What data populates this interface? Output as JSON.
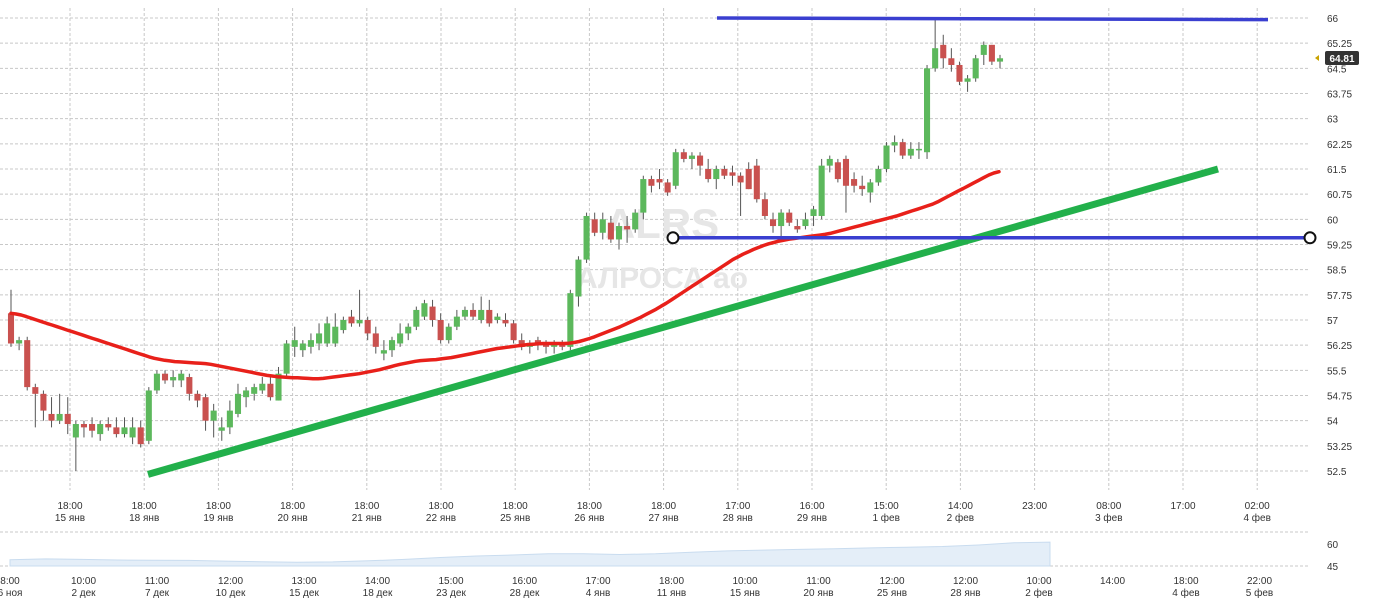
{
  "colors": {
    "up": "#5cb85c",
    "down": "#c9514f",
    "ma": "#e8201a",
    "trend": "#22b04b",
    "level": "#3a3fd0",
    "price_tag": "#333333",
    "grid": "#c8c8c8",
    "watermark": "#e6e6e6",
    "nav_fill": "#e4eef8"
  },
  "watermark": {
    "ticker": "ALRS",
    "name": "АЛРОСА ао"
  },
  "chart_data": {
    "type": "candlestick",
    "y_ticks": [
      "66",
      "65.25",
      "64.5",
      "63.75",
      "63",
      "62.25",
      "61.5",
      "60.75",
      "60",
      "59.25",
      "58.5",
      "57.75",
      "57",
      "56.25",
      "55.5",
      "54.75",
      "54",
      "53.25",
      "52.5"
    ],
    "y_range": [
      51.9,
      66.2
    ],
    "last_price": "64.81",
    "x_labels": [
      {
        "time": "18:00",
        "date": "15 янв"
      },
      {
        "time": "18:00",
        "date": "18 янв"
      },
      {
        "time": "18:00",
        "date": "19 янв"
      },
      {
        "time": "18:00",
        "date": "20 янв"
      },
      {
        "time": "18:00",
        "date": "21 янв"
      },
      {
        "time": "18:00",
        "date": "22 янв"
      },
      {
        "time": "18:00",
        "date": "25 янв"
      },
      {
        "time": "18:00",
        "date": "26 янв"
      },
      {
        "time": "18:00",
        "date": "27 янв"
      },
      {
        "time": "17:00",
        "date": "28 янв"
      },
      {
        "time": "16:00",
        "date": "29 янв"
      },
      {
        "time": "15:00",
        "date": "1 фев"
      },
      {
        "time": "14:00",
        "date": "2 фев"
      },
      {
        "time": "23:00",
        "date": ""
      },
      {
        "time": "08:00",
        "date": "3 фев"
      },
      {
        "time": "17:00",
        "date": ""
      },
      {
        "time": "02:00",
        "date": "4 фев"
      }
    ],
    "candles": [
      [
        57.2,
        57.9,
        56.2,
        56.3
      ],
      [
        56.3,
        56.5,
        56.1,
        56.4
      ],
      [
        56.4,
        56.5,
        54.9,
        55.0
      ],
      [
        55.0,
        55.1,
        53.8,
        54.8
      ],
      [
        54.8,
        54.9,
        54.0,
        54.3
      ],
      [
        54.2,
        54.7,
        53.8,
        54.0
      ],
      [
        54.0,
        54.8,
        53.9,
        54.2
      ],
      [
        54.2,
        54.7,
        53.6,
        53.9
      ],
      [
        53.5,
        54.0,
        52.5,
        53.9
      ],
      [
        53.9,
        54.0,
        53.5,
        53.8
      ],
      [
        53.9,
        54.1,
        53.5,
        53.7
      ],
      [
        53.6,
        54.0,
        53.4,
        53.9
      ],
      [
        53.9,
        54.1,
        53.7,
        53.8
      ],
      [
        53.8,
        54.1,
        53.5,
        53.6
      ],
      [
        53.6,
        54.1,
        53.5,
        53.8
      ],
      [
        53.5,
        54.1,
        53.3,
        53.8
      ],
      [
        53.8,
        54.0,
        53.2,
        53.3
      ],
      [
        53.4,
        55.0,
        53.3,
        54.9
      ],
      [
        54.9,
        55.5,
        54.8,
        55.4
      ],
      [
        55.4,
        55.5,
        55.1,
        55.2
      ],
      [
        55.2,
        55.5,
        55.0,
        55.3
      ],
      [
        55.2,
        55.5,
        55.0,
        55.4
      ],
      [
        55.3,
        55.4,
        54.6,
        54.8
      ],
      [
        54.8,
        54.9,
        54.4,
        54.6
      ],
      [
        54.7,
        54.8,
        53.7,
        54.0
      ],
      [
        54.0,
        54.5,
        53.5,
        54.3
      ],
      [
        53.7,
        54.1,
        53.4,
        53.8
      ],
      [
        53.8,
        54.6,
        53.6,
        54.3
      ],
      [
        54.2,
        55.1,
        54.1,
        54.8
      ],
      [
        54.7,
        55.0,
        54.4,
        54.9
      ],
      [
        54.8,
        55.1,
        54.6,
        55.0
      ],
      [
        54.9,
        55.3,
        54.8,
        55.1
      ],
      [
        55.1,
        55.3,
        54.6,
        54.7
      ],
      [
        54.6,
        55.6,
        54.6,
        55.4
      ],
      [
        55.4,
        56.4,
        55.3,
        56.3
      ],
      [
        56.2,
        56.8,
        55.9,
        56.4
      ],
      [
        56.1,
        56.4,
        55.9,
        56.3
      ],
      [
        56.2,
        56.6,
        56.0,
        56.4
      ],
      [
        56.3,
        56.9,
        56.1,
        56.6
      ],
      [
        56.3,
        57.1,
        56.2,
        56.9
      ],
      [
        56.3,
        57.2,
        56.2,
        56.8
      ],
      [
        56.7,
        57.1,
        56.6,
        57.0
      ],
      [
        57.1,
        57.3,
        56.8,
        56.9
      ],
      [
        56.9,
        57.9,
        56.8,
        57.0
      ],
      [
        57.0,
        57.1,
        56.4,
        56.6
      ],
      [
        56.6,
        56.8,
        56.0,
        56.2
      ],
      [
        56.0,
        56.4,
        55.8,
        56.1
      ],
      [
        56.1,
        56.5,
        55.9,
        56.4
      ],
      [
        56.3,
        56.9,
        56.2,
        56.6
      ],
      [
        56.6,
        56.9,
        56.4,
        56.8
      ],
      [
        56.8,
        57.4,
        56.7,
        57.3
      ],
      [
        57.1,
        57.6,
        57.0,
        57.5
      ],
      [
        57.4,
        57.6,
        56.8,
        57.0
      ],
      [
        57.0,
        57.2,
        56.3,
        56.4
      ],
      [
        56.4,
        56.9,
        56.3,
        56.8
      ],
      [
        56.8,
        57.3,
        56.7,
        57.1
      ],
      [
        57.1,
        57.4,
        57.0,
        57.3
      ],
      [
        57.3,
        57.5,
        57.0,
        57.1
      ],
      [
        57.0,
        57.7,
        56.9,
        57.3
      ],
      [
        57.3,
        57.6,
        56.8,
        56.9
      ],
      [
        57.0,
        57.2,
        56.9,
        57.1
      ],
      [
        57.0,
        57.2,
        56.8,
        56.9
      ],
      [
        56.9,
        57.0,
        56.3,
        56.4
      ],
      [
        56.4,
        56.6,
        56.1,
        56.2
      ],
      [
        56.2,
        56.4,
        56.0,
        56.3
      ],
      [
        56.4,
        56.5,
        56.1,
        56.3
      ],
      [
        56.3,
        56.4,
        56.0,
        56.2
      ],
      [
        56.2,
        56.4,
        56.0,
        56.3
      ],
      [
        56.3,
        56.4,
        56.1,
        56.2
      ],
      [
        56.2,
        57.9,
        56.1,
        57.8
      ],
      [
        57.7,
        58.9,
        57.4,
        58.8
      ],
      [
        58.8,
        60.2,
        58.7,
        60.1
      ],
      [
        60.0,
        60.2,
        59.5,
        59.6
      ],
      [
        59.6,
        60.2,
        59.4,
        60.0
      ],
      [
        59.9,
        60.1,
        59.3,
        59.4
      ],
      [
        59.4,
        59.9,
        59.1,
        59.8
      ],
      [
        59.8,
        60.1,
        59.3,
        59.7
      ],
      [
        59.7,
        60.3,
        59.6,
        60.2
      ],
      [
        60.2,
        61.3,
        60.0,
        61.2
      ],
      [
        61.2,
        61.3,
        60.8,
        61.0
      ],
      [
        61.2,
        61.5,
        60.9,
        61.1
      ],
      [
        61.1,
        61.2,
        60.7,
        60.8
      ],
      [
        61.0,
        62.1,
        60.9,
        62.0
      ],
      [
        62.0,
        62.1,
        61.7,
        61.8
      ],
      [
        61.8,
        62.0,
        61.5,
        61.9
      ],
      [
        61.9,
        62.0,
        61.3,
        61.6
      ],
      [
        61.5,
        61.8,
        61.1,
        61.2
      ],
      [
        61.2,
        61.6,
        60.9,
        61.5
      ],
      [
        61.5,
        61.6,
        61.2,
        61.3
      ],
      [
        61.4,
        61.6,
        61.0,
        61.3
      ],
      [
        61.3,
        61.4,
        60.1,
        61.1
      ],
      [
        61.5,
        61.7,
        60.9,
        60.9
      ],
      [
        61.6,
        61.8,
        60.5,
        60.6
      ],
      [
        60.6,
        60.8,
        60.0,
        60.1
      ],
      [
        60.0,
        60.2,
        59.6,
        59.8
      ],
      [
        59.8,
        60.3,
        59.4,
        60.2
      ],
      [
        60.2,
        60.3,
        59.8,
        59.9
      ],
      [
        59.8,
        60.0,
        59.6,
        59.7
      ],
      [
        59.8,
        60.2,
        59.7,
        60.0
      ],
      [
        60.1,
        60.4,
        59.8,
        60.3
      ],
      [
        60.1,
        61.8,
        60.0,
        61.6
      ],
      [
        61.6,
        61.9,
        61.4,
        61.8
      ],
      [
        61.7,
        61.8,
        61.1,
        61.2
      ],
      [
        61.8,
        61.9,
        60.2,
        61.0
      ],
      [
        61.2,
        61.4,
        60.8,
        61.0
      ],
      [
        61.0,
        61.3,
        60.7,
        60.9
      ],
      [
        60.8,
        61.2,
        60.5,
        61.1
      ],
      [
        61.1,
        61.6,
        61.0,
        61.5
      ],
      [
        61.5,
        62.3,
        61.4,
        62.2
      ],
      [
        62.2,
        62.5,
        62.0,
        62.3
      ],
      [
        62.3,
        62.4,
        61.8,
        61.9
      ],
      [
        61.9,
        62.3,
        61.8,
        62.1
      ],
      [
        62.1,
        62.3,
        61.8,
        62.1
      ],
      [
        62.0,
        64.6,
        61.8,
        64.5
      ],
      [
        64.5,
        66.0,
        64.4,
        65.1
      ],
      [
        65.2,
        65.5,
        64.5,
        64.8
      ],
      [
        64.8,
        65.1,
        64.4,
        64.6
      ],
      [
        64.6,
        64.7,
        64.0,
        64.1
      ],
      [
        64.1,
        64.3,
        63.8,
        64.2
      ],
      [
        64.2,
        64.9,
        64.1,
        64.8
      ],
      [
        64.9,
        65.3,
        64.6,
        65.2
      ],
      [
        65.2,
        65.2,
        64.6,
        64.7
      ],
      [
        64.7,
        64.9,
        64.5,
        64.8
      ]
    ],
    "moving_average": [
      57.2,
      57.18,
      57.15,
      57.1,
      57.05,
      57.0,
      56.95,
      56.9,
      56.85,
      56.8,
      56.75,
      56.7,
      56.65,
      56.6,
      56.55,
      56.5,
      56.45,
      56.4,
      56.35,
      56.3,
      56.25,
      56.2,
      56.15,
      56.1,
      56.05,
      56.0,
      55.95,
      55.9,
      55.86,
      55.83,
      55.8,
      55.78,
      55.76,
      55.75,
      55.74,
      55.73,
      55.72,
      55.71,
      55.7,
      55.68,
      55.65,
      55.62,
      55.59,
      55.56,
      55.53,
      55.5,
      55.47,
      55.44,
      55.41,
      55.38,
      55.35,
      55.33,
      55.31,
      55.3,
      55.29,
      55.28,
      55.28,
      55.27,
      55.26,
      55.25,
      55.25,
      55.26,
      55.28,
      55.3,
      55.32,
      55.34,
      55.36,
      55.38,
      55.4,
      55.43,
      55.46,
      55.49,
      55.52,
      55.56,
      55.6,
      55.64,
      55.68,
      55.71,
      55.74,
      55.77,
      55.79,
      55.8,
      55.81,
      55.82,
      55.84,
      55.86,
      55.88,
      55.91,
      55.94,
      55.97,
      56.0,
      56.03,
      56.06,
      56.09,
      56.12,
      56.15,
      56.17,
      56.19,
      56.21,
      56.23,
      56.25,
      56.27,
      56.28,
      56.29,
      56.3,
      56.3,
      56.3,
      56.3,
      56.3,
      56.31,
      56.33,
      56.36,
      56.4,
      56.45,
      56.5,
      56.56,
      56.62,
      56.68,
      56.74,
      56.8,
      56.87,
      56.94,
      57.01,
      57.08,
      57.16,
      57.24,
      57.32,
      57.41,
      57.5,
      57.6,
      57.7,
      57.8,
      57.9,
      58.0,
      58.1,
      58.2,
      58.3,
      58.4,
      58.5,
      58.6,
      58.7,
      58.8,
      58.88,
      58.96,
      59.03,
      59.1,
      59.16,
      59.22,
      59.27,
      59.31,
      59.35,
      59.38,
      59.41,
      59.43,
      59.45,
      59.47,
      59.49,
      59.51,
      59.53,
      59.55,
      59.58,
      59.62,
      59.66,
      59.7,
      59.74,
      59.78,
      59.82,
      59.86,
      59.9,
      59.94,
      59.98,
      60.02,
      60.06,
      60.1,
      60.15,
      60.2,
      60.25,
      60.3,
      60.35,
      60.4,
      60.45,
      60.52,
      60.6,
      60.68,
      60.76,
      60.84,
      60.92,
      61.0,
      61.08,
      61.16,
      61.24,
      61.32,
      61.38,
      61.42
    ],
    "ma_x_span": [
      11,
      999
    ],
    "trend_line": {
      "from": [
        148,
        52.4
      ],
      "to": [
        1218,
        61.5
      ]
    },
    "level_lines": [
      {
        "from": [
          717,
          66.0
        ],
        "to": [
          1268,
          65.95
        ]
      },
      {
        "from": [
          673,
          59.45
        ],
        "to": [
          1310,
          59.45
        ]
      }
    ],
    "navigator": {
      "y_ticks": [
        "60",
        "45"
      ],
      "x_labels": [
        {
          "time": "8:00",
          "date": "6 ноя"
        },
        {
          "time": "10:00",
          "date": "2 дек"
        },
        {
          "time": "11:00",
          "date": "7 дек"
        },
        {
          "time": "12:00",
          "date": "10 дек"
        },
        {
          "time": "13:00",
          "date": "15 дек"
        },
        {
          "time": "14:00",
          "date": "18 дек"
        },
        {
          "time": "15:00",
          "date": "23 дек"
        },
        {
          "time": "16:00",
          "date": "28 дек"
        },
        {
          "time": "17:00",
          "date": "4 янв"
        },
        {
          "time": "18:00",
          "date": "11 янв"
        },
        {
          "time": "10:00",
          "date": "15 янв"
        },
        {
          "time": "11:00",
          "date": "20 янв"
        },
        {
          "time": "12:00",
          "date": "25 янв"
        },
        {
          "time": "12:00",
          "date": "28 янв"
        },
        {
          "time": "10:00",
          "date": "2 фев"
        },
        {
          "time": "14:00",
          "date": ""
        },
        {
          "time": "18:00",
          "date": "4 фев"
        },
        {
          "time": "22:00",
          "date": "5 фев"
        }
      ],
      "series": [
        50.0,
        50.5,
        50.2,
        49.8,
        49.6,
        49.5,
        49.0,
        48.6,
        48.3,
        48.5,
        49.2,
        50.2,
        51.5,
        52.5,
        53.2,
        54.0,
        54.0,
        53.5,
        54.0,
        55.0,
        56.0,
        56.5,
        57.0,
        57.5,
        58.0,
        58.5,
        59.0,
        60.0,
        61.5,
        62.0
      ]
    }
  }
}
